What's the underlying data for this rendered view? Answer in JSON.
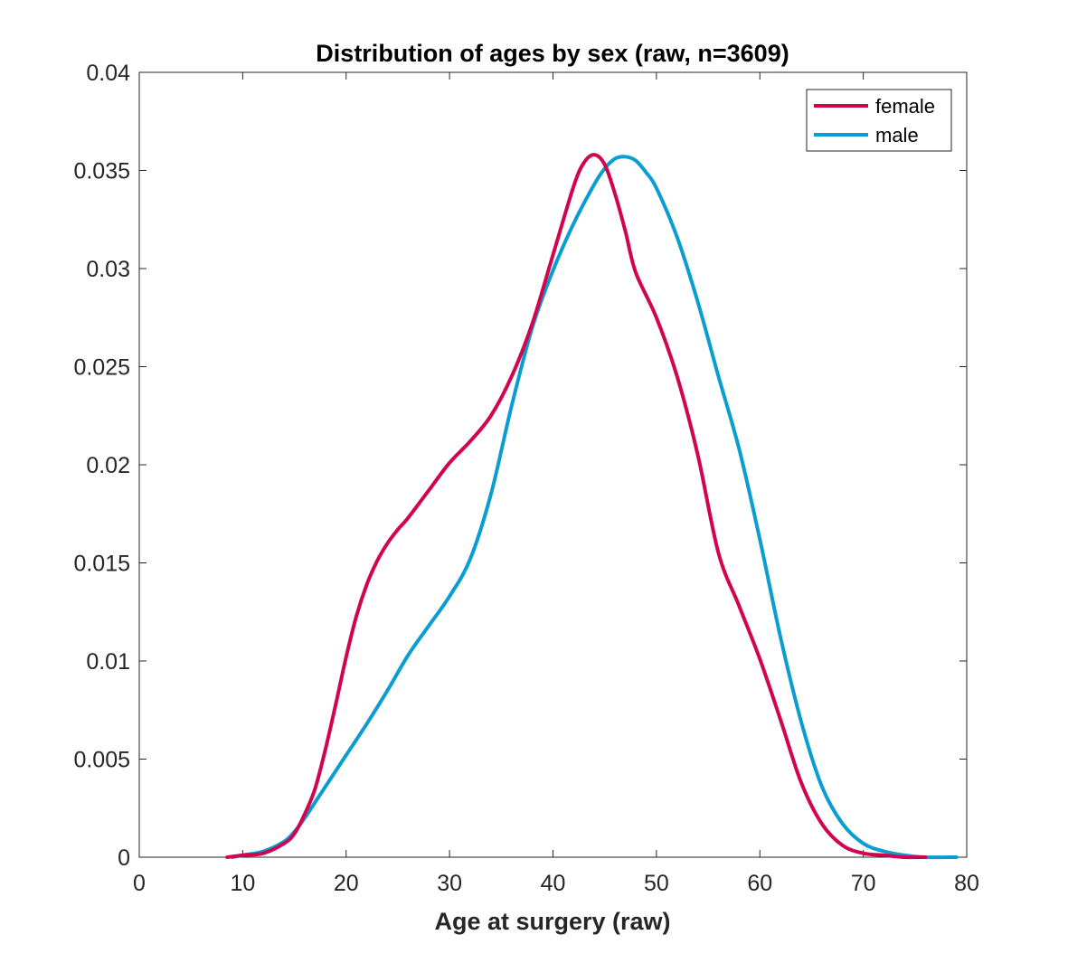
{
  "chart_data": {
    "type": "line",
    "title": "Distribution of ages by sex (raw, n=3609)",
    "xlabel": "Age at surgery (raw)",
    "ylabel": "",
    "xlim": [
      0,
      80
    ],
    "ylim": [
      0,
      0.04
    ],
    "xticks": [
      0,
      10,
      20,
      30,
      40,
      50,
      60,
      70,
      80
    ],
    "yticks": [
      0,
      0.005,
      0.01,
      0.015,
      0.02,
      0.025,
      0.03,
      0.035,
      0.04
    ],
    "xtick_labels": [
      "0",
      "10",
      "20",
      "30",
      "40",
      "50",
      "60",
      "70",
      "80"
    ],
    "ytick_labels": [
      "0",
      "0.005",
      "0.01",
      "0.015",
      "0.02",
      "0.025",
      "0.03",
      "0.035",
      "0.04"
    ],
    "grid": false,
    "legend": {
      "location": "top-right",
      "entries": [
        "female",
        "male"
      ]
    },
    "series": [
      {
        "name": "female",
        "color": "#d1044f",
        "x": [
          8.5,
          10,
          12,
          14,
          15,
          16,
          17,
          18,
          19,
          20,
          21,
          22,
          23,
          24,
          25,
          26,
          28,
          30,
          32,
          34,
          36,
          38,
          40,
          42,
          43,
          44,
          45,
          46,
          47,
          48,
          50,
          52,
          54,
          56,
          58,
          60,
          62,
          64,
          66,
          68,
          70,
          72,
          74,
          76
        ],
        "y": [
          0.0,
          0.0001,
          0.0002,
          0.0007,
          0.0012,
          0.0022,
          0.0035,
          0.0055,
          0.0078,
          0.0102,
          0.0123,
          0.0139,
          0.0151,
          0.016,
          0.0167,
          0.0173,
          0.0187,
          0.0201,
          0.0212,
          0.0225,
          0.0245,
          0.0272,
          0.0307,
          0.0342,
          0.0354,
          0.0358,
          0.0353,
          0.0338,
          0.0319,
          0.0298,
          0.0275,
          0.0245,
          0.0205,
          0.0155,
          0.0128,
          0.0101,
          0.007,
          0.0038,
          0.0017,
          0.0006,
          0.0002,
          0.0001,
          0.0,
          0.0
        ]
      },
      {
        "name": "male",
        "color": "#0a9dd1",
        "x": [
          9,
          10,
          12,
          14,
          15,
          16,
          17,
          18,
          20,
          22,
          24,
          26,
          28,
          30,
          32,
          34,
          36,
          38,
          40,
          42,
          44,
          45,
          46,
          47,
          48,
          49,
          50,
          52,
          54,
          56,
          58,
          60,
          62,
          64,
          66,
          68,
          70,
          72,
          74,
          76,
          79
        ],
        "y": [
          0.0,
          0.0001,
          0.0003,
          0.0008,
          0.0013,
          0.002,
          0.0028,
          0.0036,
          0.0052,
          0.0068,
          0.0085,
          0.0103,
          0.0118,
          0.0133,
          0.0152,
          0.0185,
          0.023,
          0.027,
          0.0299,
          0.0323,
          0.0343,
          0.0351,
          0.0356,
          0.0357,
          0.0355,
          0.0349,
          0.0341,
          0.0316,
          0.0283,
          0.0245,
          0.0208,
          0.0162,
          0.0112,
          0.0069,
          0.0036,
          0.0017,
          0.0007,
          0.0003,
          0.0001,
          0.0,
          0.0
        ]
      }
    ]
  }
}
